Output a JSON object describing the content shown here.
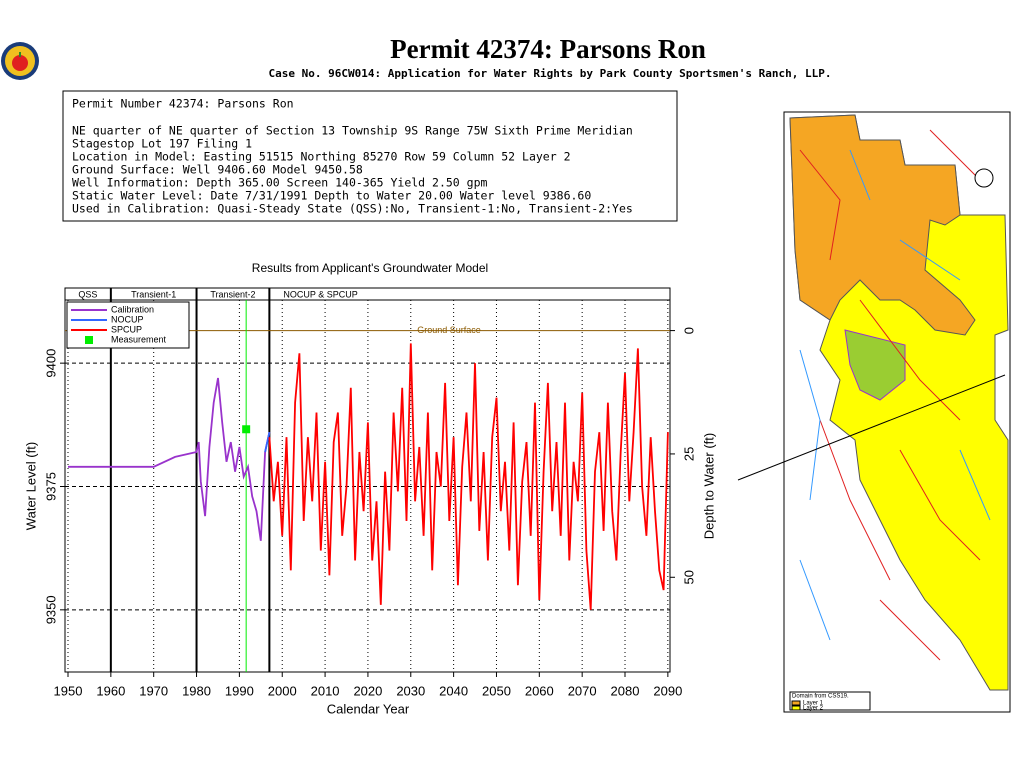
{
  "header": {
    "title": "Permit 42374:   Parsons Ron",
    "subtitle": "Case No. 96CW014: Application for Water Rights by Park County Sportsmen's Ranch, LLP."
  },
  "info": {
    "lines": [
      "Permit Number 42374: Parsons Ron",
      "NE quarter of NE quarter of Section 13 Township 9S Range 75W Sixth Prime Meridian",
      "Stagestop Lot 197 Filing 1",
      "Location in Model: Easting 51515 Northing  85270 Row   59 Column 52 Layer 2",
      "Ground Surface: Well   9406.60 Model   9450.58",
      "Well Information: Depth    365.00 Screen 140-365 Yield       2.50 gpm",
      "Static Water Level: Date   7/31/1991 Depth to Water     20.00 Water level   9386.60",
      "Used in Calibration: Quasi-Steady State (QSS):No, Transient-1:No, Transient-2:Yes"
    ]
  },
  "map": {
    "legend_title": "Domain from CSS19.",
    "legend_items": [
      "Layer 1",
      "Layer 2"
    ]
  },
  "chart_data": {
    "type": "line",
    "title": "Results from Applicant's Groundwater Model",
    "x_label": "Calendar Year",
    "y_label": "Water Level (ft)",
    "y2_label": "Depth to Water (ft)",
    "xlim": [
      1949.3,
      2090.5
    ],
    "xticks": [
      1950,
      1960,
      1970,
      1980,
      1990,
      2000,
      2010,
      2020,
      2030,
      2040,
      2050,
      2060,
      2070,
      2080,
      2090
    ],
    "ylim": [
      9337.4,
      9412.8
    ],
    "yticks": [
      9350,
      9375,
      9400
    ],
    "y2lim": [
      69.2,
      -6.2
    ],
    "y2ticks": [
      0,
      25,
      50
    ],
    "grid": true,
    "periods": {
      "labels": [
        "QSS",
        "Transient-1",
        "Transient-2",
        "NOCUP & SPCUP"
      ],
      "breaks": [
        1960,
        1980,
        1997
      ]
    },
    "ground_surface": {
      "text": "Ground Surface",
      "value": 9406.6,
      "color": "#8b5a00"
    },
    "series": [
      {
        "name": "Calibration",
        "color": "#9933cc",
        "x": [
          1950,
          1970,
          1975,
          1980,
          1980.5,
          1981,
          1982,
          1983,
          1984,
          1985,
          1986,
          1987,
          1988,
          1989,
          1990,
          1991,
          1992,
          1993,
          1994,
          1995,
          1996,
          1997
        ],
        "values": [
          9379,
          9379,
          9381,
          9382,
          9384,
          9376,
          9369,
          9383,
          9392,
          9397,
          9388,
          9380,
          9384,
          9378,
          9383,
          9377,
          9379,
          9373,
          9370,
          9364,
          9382,
          9386
        ]
      },
      {
        "name": "NOCUP",
        "color": "#3366ff",
        "x": [
          1996,
          1997
        ],
        "values": [
          9382,
          9386
        ]
      },
      {
        "name": "SPCUP",
        "color": "#ff0000",
        "x": [
          1997,
          1998,
          1999,
          2000,
          2001,
          2002,
          2003,
          2004,
          2005,
          2006,
          2007,
          2008,
          2009,
          2010,
          2011,
          2012,
          2013,
          2014,
          2015,
          2016,
          2017,
          2018,
          2019,
          2020,
          2021,
          2022,
          2023,
          2024,
          2025,
          2026,
          2027,
          2028,
          2029,
          2030,
          2031,
          2032,
          2033,
          2034,
          2035,
          2036,
          2037,
          2038,
          2039,
          2040,
          2041,
          2042,
          2043,
          2044,
          2045,
          2046,
          2047,
          2048,
          2049,
          2050,
          2051,
          2052,
          2053,
          2054,
          2055,
          2056,
          2057,
          2058,
          2059,
          2060,
          2061,
          2062,
          2063,
          2064,
          2065,
          2066,
          2067,
          2068,
          2069,
          2070,
          2071,
          2072,
          2073,
          2074,
          2075,
          2076,
          2077,
          2078,
          2079,
          2080,
          2081,
          2082,
          2083,
          2084,
          2085,
          2086,
          2087,
          2088,
          2089,
          2090
        ],
        "values": [
          9385,
          9372,
          9380,
          9365,
          9385,
          9358,
          9392,
          9402,
          9368,
          9385,
          9372,
          9390,
          9362,
          9380,
          9357,
          9384,
          9390,
          9365,
          9375,
          9395,
          9360,
          9382,
          9370,
          9388,
          9360,
          9372,
          9351,
          9378,
          9362,
          9390,
          9374,
          9395,
          9368,
          9404,
          9372,
          9383,
          9365,
          9390,
          9358,
          9382,
          9375,
          9396,
          9368,
          9385,
          9355,
          9379,
          9390,
          9372,
          9400,
          9366,
          9382,
          9360,
          9385,
          9393,
          9370,
          9380,
          9362,
          9388,
          9355,
          9376,
          9384,
          9365,
          9392,
          9352,
          9378,
          9396,
          9370,
          9384,
          9365,
          9392,
          9360,
          9380,
          9372,
          9394,
          9362,
          9350,
          9378,
          9386,
          9366,
          9392,
          9370,
          9360,
          9382,
          9398,
          9372,
          9386,
          9403,
          9375,
          9365,
          9385,
          9370,
          9358,
          9354,
          9386
        ]
      }
    ],
    "measurement": {
      "name": "Measurement",
      "color": "#00ee00",
      "x": 1991.58,
      "y": 9386.6
    }
  }
}
